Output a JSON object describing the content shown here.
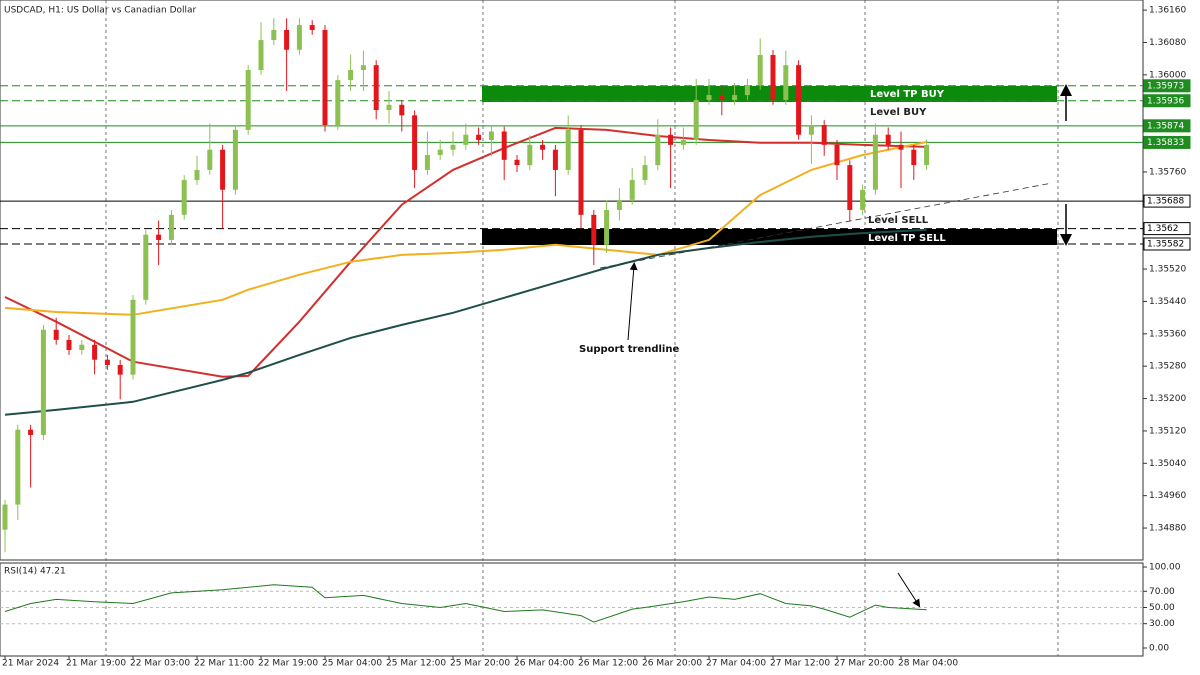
{
  "chart_data": [
    {
      "type": "candlestick",
      "title": "USDCAD, H1:  US Dollar vs Canadian Dollar",
      "categories": [
        "21 Mar 2024",
        null,
        null,
        null,
        null,
        "21 Mar 19:00",
        null,
        null,
        null,
        null,
        "22 Mar 03:00",
        null,
        null,
        null,
        null,
        "22 Mar 11:00",
        null,
        null,
        null,
        null,
        "22 Mar 19:00",
        null,
        null,
        null,
        null,
        "25 Mar 04:00",
        null,
        null,
        null,
        null,
        "25 Mar 12:00",
        null,
        null,
        null,
        null,
        "25 Mar 20:00",
        null,
        null,
        null,
        null,
        "26 Mar 04:00",
        null,
        null,
        null,
        null,
        "26 Mar 12:00",
        null,
        null,
        null,
        null,
        "26 Mar 20:00",
        null,
        null,
        null,
        null,
        "27 Mar 04:00",
        null,
        null,
        null,
        null,
        "27 Mar 12:00",
        null,
        null,
        null,
        null,
        "27 Mar 20:00",
        null,
        null,
        null,
        null,
        "28 Mar 04:00",
        null,
        null
      ],
      "open": [
        1.34876,
        1.34938,
        1.35123,
        1.3511,
        1.3537,
        1.35345,
        1.3532,
        1.35333,
        1.35296,
        1.35283,
        1.35259,
        1.35444,
        1.35605,
        1.35592,
        1.35654,
        1.3574,
        1.35765,
        1.35815,
        1.35716,
        1.35864,
        1.36012,
        1.36086,
        1.36111,
        1.36062,
        1.36123,
        1.36111,
        1.35876,
        1.35987,
        1.36012,
        1.36024,
        1.35913,
        1.35926,
        1.359,
        1.35765,
        1.35802,
        1.35815,
        1.35827,
        1.35852,
        1.35839,
        1.3586,
        1.3579,
        1.35777,
        1.35827,
        1.35815,
        1.35765,
        1.35864,
        1.35654,
        1.3558,
        1.35666,
        1.35691,
        1.3574,
        1.35777,
        1.35852,
        1.35827,
        1.35839,
        1.35938,
        1.3595,
        1.35938,
        1.3595,
        1.35975,
        1.36049,
        1.35938,
        1.36024,
        1.35852,
        1.35876,
        1.35827,
        1.35777,
        1.35666,
        1.35716,
        1.35852,
        1.35827,
        1.35815,
        1.35777
      ],
      "high": [
        1.3495,
        1.35135,
        1.35135,
        1.35382,
        1.354,
        1.35357,
        1.35345,
        1.35345,
        1.35308,
        1.35295,
        1.35456,
        1.35617,
        1.3564,
        1.35666,
        1.35752,
        1.358,
        1.3588,
        1.35827,
        1.35876,
        1.36024,
        1.3613,
        1.3614,
        1.3614,
        1.3614,
        1.36135,
        1.36123,
        1.35999,
        1.3605,
        1.3606,
        1.36036,
        1.3596,
        1.35938,
        1.35912,
        1.3586,
        1.3584,
        1.3586,
        1.3588,
        1.3587,
        1.35872,
        1.35872,
        1.35802,
        1.3585,
        1.35839,
        1.35827,
        1.359,
        1.35876,
        1.35666,
        1.3569,
        1.3572,
        1.3577,
        1.358,
        1.3589,
        1.3587,
        1.3587,
        1.3599,
        1.3599,
        1.35975,
        1.3598,
        1.3599,
        1.3609,
        1.36061,
        1.3606,
        1.36036,
        1.359,
        1.35888,
        1.35839,
        1.35789,
        1.35728,
        1.3588,
        1.3587,
        1.3586,
        1.35827,
        1.3584
      ],
      "low": [
        1.3482,
        1.349,
        1.3498,
        1.35098,
        1.35333,
        1.35308,
        1.35308,
        1.3526,
        1.35271,
        1.35198,
        1.35247,
        1.35432,
        1.3553,
        1.3558,
        1.35642,
        1.35728,
        1.35753,
        1.3562,
        1.35704,
        1.35852,
        1.36,
        1.36074,
        1.3596,
        1.3605,
        1.36099,
        1.3586,
        1.35864,
        1.3596,
        1.3596,
        1.3589,
        1.3588,
        1.3586,
        1.3572,
        1.35753,
        1.3579,
        1.358,
        1.35815,
        1.35827,
        1.358,
        1.3574,
        1.3576,
        1.35765,
        1.3579,
        1.357,
        1.35753,
        1.3562,
        1.3553,
        1.3556,
        1.3564,
        1.35679,
        1.35728,
        1.35765,
        1.3572,
        1.35815,
        1.35827,
        1.35926,
        1.359,
        1.35926,
        1.35938,
        1.35963,
        1.35926,
        1.35926,
        1.3584,
        1.3578,
        1.358,
        1.3574,
        1.3564,
        1.35654,
        1.35704,
        1.35815,
        1.3572,
        1.3574,
        1.35765
      ],
      "close": [
        1.34938,
        1.35123,
        1.3511,
        1.3537,
        1.35345,
        1.3532,
        1.35333,
        1.35296,
        1.35283,
        1.35259,
        1.35444,
        1.35605,
        1.35592,
        1.35654,
        1.3574,
        1.35765,
        1.35815,
        1.35716,
        1.35864,
        1.36012,
        1.36086,
        1.36111,
        1.36062,
        1.36123,
        1.36111,
        1.35876,
        1.35987,
        1.36012,
        1.36024,
        1.35913,
        1.35926,
        1.359,
        1.35765,
        1.35802,
        1.35815,
        1.35827,
        1.35852,
        1.35839,
        1.3586,
        1.3579,
        1.35777,
        1.35827,
        1.35815,
        1.35765,
        1.35864,
        1.35654,
        1.3558,
        1.35666,
        1.35691,
        1.3574,
        1.35777,
        1.35852,
        1.35827,
        1.35839,
        1.35938,
        1.3595,
        1.35938,
        1.3595,
        1.35975,
        1.36049,
        1.35938,
        1.36024,
        1.35852,
        1.35876,
        1.35827,
        1.35777,
        1.35666,
        1.35716,
        1.35852,
        1.35827,
        1.35815,
        1.35777,
        1.35827
      ],
      "up_color": "#8cc152",
      "down_color": "#e3161c",
      "ylim": [
        1.34801,
        1.36185
      ],
      "yticks": [
        {
          "value": 1.3616,
          "label": "1.36160"
        },
        {
          "value": 1.3608,
          "label": "1.36080"
        },
        {
          "value": 1.36,
          "label": "1.36000"
        },
        {
          "value": 1.3576,
          "label": "1.35760"
        },
        {
          "value": 1.3552,
          "label": "1.35520"
        },
        {
          "value": 1.3544,
          "label": "1.35440"
        },
        {
          "value": 1.3536,
          "label": "1.35360"
        },
        {
          "value": 1.3528,
          "label": "1.35280"
        },
        {
          "value": 1.352,
          "label": "1.35200"
        },
        {
          "value": 1.3512,
          "label": "1.35120"
        },
        {
          "value": 1.3504,
          "label": "1.35040"
        },
        {
          "value": 1.3496,
          "label": "1.34960"
        },
        {
          "value": 1.3488,
          "label": "1.34880"
        }
      ],
      "indicators": [
        {
          "color": "#d32f2f",
          "x": [
            0,
            4,
            10,
            17,
            19,
            23,
            27,
            31,
            35,
            39,
            43,
            47,
            51,
            55,
            59,
            63,
            67,
            72
          ],
          "values": [
            1.35451,
            1.3539,
            1.35291,
            1.35254,
            1.35256,
            1.3539,
            1.35538,
            1.35679,
            1.35765,
            1.35819,
            1.35869,
            1.35864,
            1.35849,
            1.35839,
            1.35832,
            1.35832,
            1.35827,
            1.35822
          ]
        },
        {
          "color": "#f2b01e",
          "x": [
            0,
            4,
            10,
            17,
            19,
            23,
            27,
            31,
            35,
            39,
            43,
            47,
            51,
            55,
            59,
            63,
            67,
            72
          ],
          "values": [
            1.35424,
            1.35414,
            1.35407,
            1.35444,
            1.35469,
            1.35506,
            1.35538,
            1.35555,
            1.3556,
            1.35568,
            1.3558,
            1.35568,
            1.35555,
            1.35592,
            1.35703,
            1.35765,
            1.35802,
            1.35834
          ]
        },
        {
          "color": "#1f4f4a",
          "x": [
            0,
            4,
            10,
            17,
            19,
            23,
            27,
            31,
            35,
            39,
            43,
            47,
            51,
            55,
            59,
            63,
            67,
            72
          ],
          "values": [
            1.3516,
            1.35172,
            1.35192,
            1.35246,
            1.35264,
            1.35308,
            1.3535,
            1.35382,
            1.35412,
            1.35449,
            1.35486,
            1.35523,
            1.35555,
            1.35572,
            1.35587,
            1.356,
            1.35609,
            1.35617
          ]
        }
      ],
      "levels": [
        {
          "value": 1.35973,
          "color": "#1e8c1e",
          "dashed": true
        },
        {
          "value": 1.35936,
          "color": "#1e8c1e",
          "dashed": true
        },
        {
          "value": 1.35874,
          "color": "#1e8c1e",
          "dashed": false
        },
        {
          "value": 1.35833,
          "color": "#1e8c1e",
          "dashed": false
        },
        {
          "value": 1.35688,
          "color": "#000000",
          "dashed": false
        },
        {
          "value": 1.3562,
          "color": "#000000",
          "dashed": true
        },
        {
          "value": 1.35582,
          "color": "#000000",
          "dashed": true
        }
      ],
      "annotations": [
        "Level TP BUY",
        "Level BUY",
        "Level SELL",
        "Level TP SELL",
        "Support trendline"
      ]
    },
    {
      "type": "line",
      "title": "RSI(14) 47.21",
      "x": [
        0,
        2,
        4,
        7,
        10,
        13,
        17,
        21,
        24,
        25,
        28,
        31,
        34,
        36,
        39,
        42,
        45,
        46,
        49,
        50,
        53,
        55,
        57,
        59,
        61,
        63,
        64,
        66,
        68,
        69,
        72
      ],
      "values": [
        45,
        55,
        60,
        57,
        55,
        68,
        72,
        78,
        75,
        62,
        65,
        55,
        50,
        55,
        45,
        47,
        40,
        32,
        48,
        50,
        57,
        63,
        60,
        67,
        55,
        52,
        48,
        38,
        53,
        50,
        47.21
      ],
      "color": "#1e7a1e",
      "ylim": [
        0,
        100
      ],
      "yticks": [
        {
          "value": 100,
          "label": "100.00"
        },
        {
          "value": 70,
          "label": "70.00"
        },
        {
          "value": 50,
          "label": "50.00"
        },
        {
          "value": 30,
          "label": "30.00"
        },
        {
          "value": 0,
          "label": "0.00"
        }
      ],
      "grid": true
    }
  ]
}
